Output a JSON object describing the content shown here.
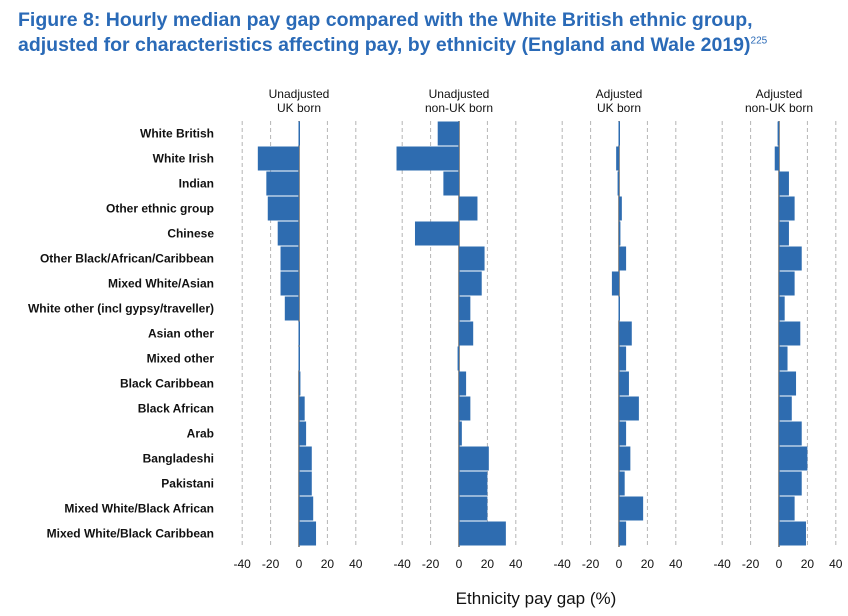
{
  "figure": {
    "title_line1": "Figure 8: Hourly median pay gap compared with the White British ethnic group,",
    "title_line2": "adjusted for characteristics affecting pay, by ethnicity (England and Wale 2019)",
    "footnote": "225"
  },
  "chart_data": {
    "type": "bar",
    "orientation": "horizontal",
    "xlabel": "Ethnicity pay gap (%)",
    "xlim": [
      -45,
      45
    ],
    "xticks": [
      -40,
      -20,
      0,
      20,
      40
    ],
    "grid": "vertical dashed",
    "bar_color": "#2e6cb0",
    "categories": [
      "White British",
      "White Irish",
      "Indian",
      "Other ethnic group",
      "Chinese",
      "Other Black/African/Caribbean",
      "Mixed White/Asian",
      "White other (incl gypsy/traveller)",
      "Asian other",
      "Mixed other",
      "Black Caribbean",
      "Black African",
      "Arab",
      "Bangladeshi",
      "Pakistani",
      "Mixed White/Black African",
      "Mixed White/Black Caribbean"
    ],
    "panels": [
      {
        "title_line1": "Unadjusted",
        "title_line2": "UK born",
        "values": [
          0,
          -29,
          -23,
          -22,
          -15,
          -13,
          -13,
          -10,
          0,
          0,
          1,
          4,
          5,
          9,
          9,
          10,
          12
        ]
      },
      {
        "title_line1": "Unadjusted",
        "title_line2": "non-UK born",
        "values": [
          -15,
          -44,
          -11,
          13,
          -31,
          18,
          16,
          8,
          10,
          -1,
          5,
          8,
          2,
          21,
          20,
          20,
          33
        ]
      },
      {
        "title_line1": "Adjusted",
        "title_line2": "UK born",
        "values": [
          0,
          -2,
          -1,
          2,
          1,
          5,
          -5,
          0,
          9,
          5,
          7,
          14,
          5,
          8,
          4,
          17,
          5
        ]
      },
      {
        "title_line1": "Adjusted",
        "title_line2": "non-UK born",
        "values": [
          -1,
          -3,
          7,
          11,
          7,
          16,
          11,
          4,
          15,
          6,
          12,
          9,
          16,
          20,
          16,
          11,
          19
        ]
      }
    ]
  }
}
